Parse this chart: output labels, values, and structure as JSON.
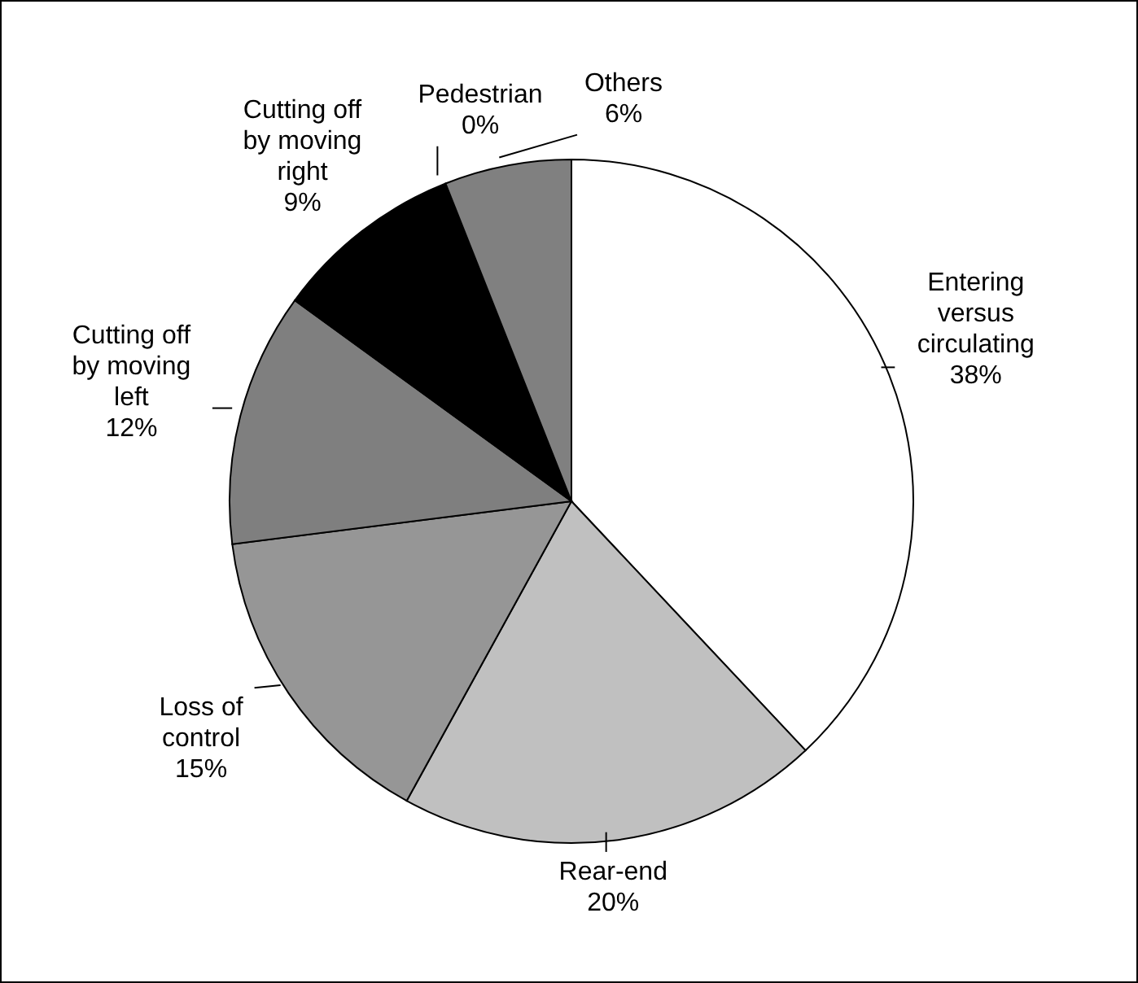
{
  "chart_data": {
    "type": "pie",
    "categories": [
      "Entering versus circulating",
      "Rear-end",
      "Loss of control",
      "Cutting off by moving left",
      "Cutting off by moving right",
      "Pedestrian",
      "Others"
    ],
    "values": [
      38,
      20,
      15,
      12,
      9,
      0,
      6
    ],
    "value_labels": [
      "38%",
      "20%",
      "15%",
      "12%",
      "9%",
      "0%",
      "6%"
    ],
    "colors": [
      "#ffffff",
      "#c0c0c0",
      "#969696",
      "#7f7f7f",
      "#000000",
      "#c0c0c0",
      "#808080"
    ],
    "legend": false
  }
}
